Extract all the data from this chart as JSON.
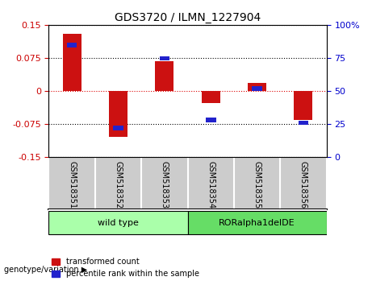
{
  "title": "GDS3720 / ILMN_1227904",
  "categories": [
    "GSM518351",
    "GSM518352",
    "GSM518353",
    "GSM518354",
    "GSM518355",
    "GSM518356"
  ],
  "red_values": [
    0.13,
    -0.105,
    0.068,
    -0.028,
    0.018,
    -0.065
  ],
  "blue_values_pct": [
    85,
    22,
    75,
    28,
    52,
    26
  ],
  "ylim_left": [
    -0.15,
    0.15
  ],
  "ylim_right": [
    0,
    100
  ],
  "yticks_left": [
    -0.15,
    -0.075,
    0,
    0.075,
    0.15
  ],
  "yticks_right": [
    0,
    25,
    50,
    75,
    100
  ],
  "ytick_labels_left": [
    "-0.15",
    "-0.075",
    "0",
    "0.075",
    "0.15"
  ],
  "ytick_labels_right": [
    "0",
    "25",
    "50",
    "75",
    "100%"
  ],
  "left_color": "#cc0000",
  "right_color": "#0000cc",
  "bar_red_color": "#cc1111",
  "bar_blue_color": "#2222cc",
  "group1_label": "wild type",
  "group2_label": "RORalpha1delDE",
  "group1_indices": [
    0,
    1,
    2
  ],
  "group2_indices": [
    3,
    4,
    5
  ],
  "group1_color": "#aaffaa",
  "group2_color": "#66dd66",
  "genotype_label": "genotype/variation",
  "legend1": "transformed count",
  "legend2": "percentile rank within the sample",
  "bar_width": 0.4,
  "grid_color": "#000000",
  "zero_line_color": "#dd0000",
  "bg_color": "#ffffff",
  "plot_bg_color": "#ffffff",
  "tick_bg_color": "#cccccc"
}
